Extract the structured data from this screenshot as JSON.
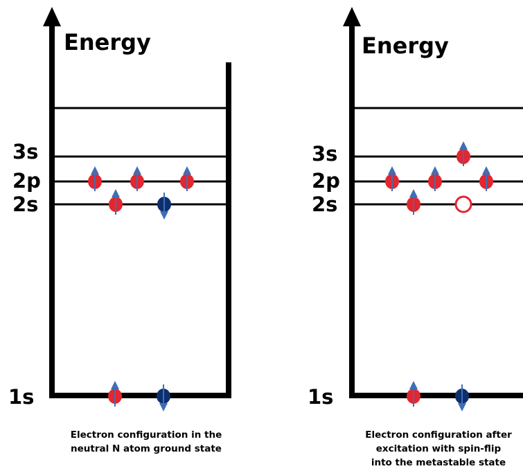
{
  "panels": [
    {
      "id": "left",
      "axis_label": "Energy",
      "levels": {
        "s3": "3s",
        "p2": "2p",
        "s2": "2s",
        "s1": "1s"
      },
      "caption": [
        "Electron configuration in the",
        "neutral N atom ground state"
      ]
    },
    {
      "id": "right",
      "axis_label": "Energy",
      "levels": {
        "s3": "3s",
        "p2": "2p",
        "s2": "2s",
        "s1": "1s"
      },
      "caption": [
        "Electron configuration after",
        "excitation with spin-flip",
        "into the metastable state"
      ]
    }
  ],
  "colors": {
    "spin_up": "#e3262f",
    "spin_down": "#0d2f6e",
    "arrow": "#3d6fb5",
    "hole": "#e3262f",
    "line": "#000000"
  }
}
